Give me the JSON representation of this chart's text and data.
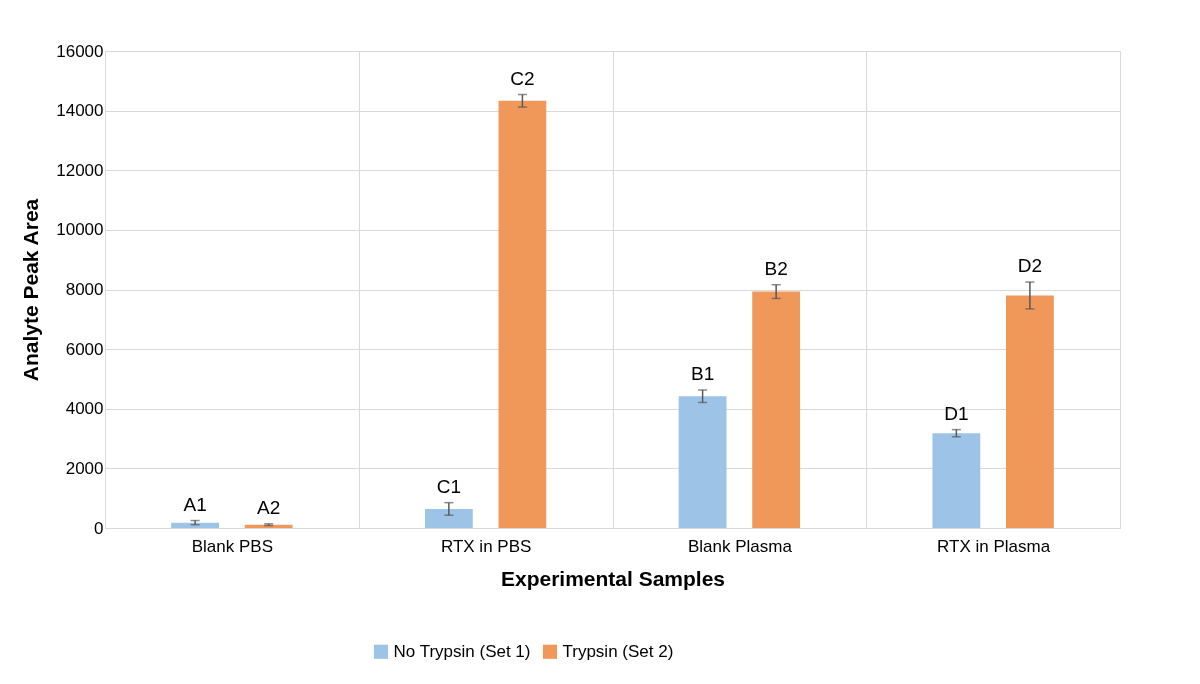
{
  "chart_data": {
    "type": "bar",
    "xlabel": "Experimental Samples",
    "ylabel": "Analyte  Peak Area",
    "categories": [
      "Blank PBS",
      "RTX in PBS",
      "Blank Plasma",
      "RTX in Plasma"
    ],
    "series": [
      {
        "name": "No Trypsin (Set 1)",
        "color": "#9dc3e6",
        "values": [
          180,
          640,
          4420,
          3180
        ],
        "errors": [
          70,
          210,
          210,
          120
        ],
        "value_labels": [
          "A1",
          "C1",
          "B1",
          "D1"
        ]
      },
      {
        "name": "Trypsin (Set 2)",
        "color": "#f0975a",
        "values": [
          110,
          14330,
          7930,
          7800
        ],
        "errors": [
          30,
          210,
          230,
          450
        ],
        "value_labels": [
          "A2",
          "C2",
          "B2",
          "D2"
        ]
      }
    ],
    "ylim": [
      0,
      16000
    ],
    "yticks": [
      0,
      2000,
      4000,
      6000,
      8000,
      10000,
      12000,
      14000,
      16000
    ],
    "grid": true,
    "legend": "bottom"
  }
}
